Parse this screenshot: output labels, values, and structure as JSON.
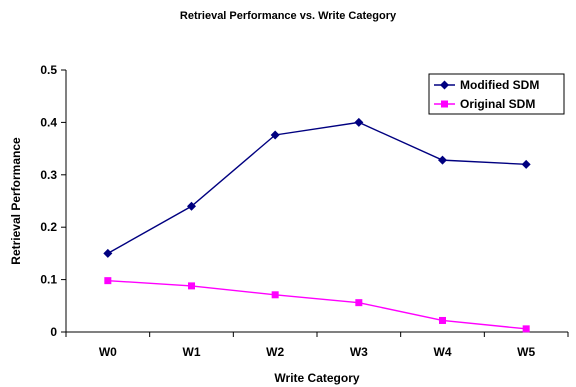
{
  "chart_data": {
    "type": "line",
    "title": "Retrieval Performance vs. Write Category",
    "xlabel": "Write Category",
    "ylabel": "Retrieval Performance",
    "categories": [
      "W0",
      "W1",
      "W2",
      "W3",
      "W4",
      "W5"
    ],
    "ylim": [
      0,
      0.5
    ],
    "yticks": [
      "0",
      "0.1",
      "0.2",
      "0.3",
      "0.4",
      "0.5"
    ],
    "grid": false,
    "legend_position": "top-right",
    "series": [
      {
        "name": "Modified SDM",
        "values": [
          0.15,
          0.24,
          0.376,
          0.4,
          0.328,
          0.32
        ],
        "color": "#000080",
        "marker": "diamond"
      },
      {
        "name": "Original SDM",
        "values": [
          0.098,
          0.088,
          0.071,
          0.056,
          0.022,
          0.006
        ],
        "color": "#FF00FF",
        "marker": "square"
      }
    ]
  }
}
